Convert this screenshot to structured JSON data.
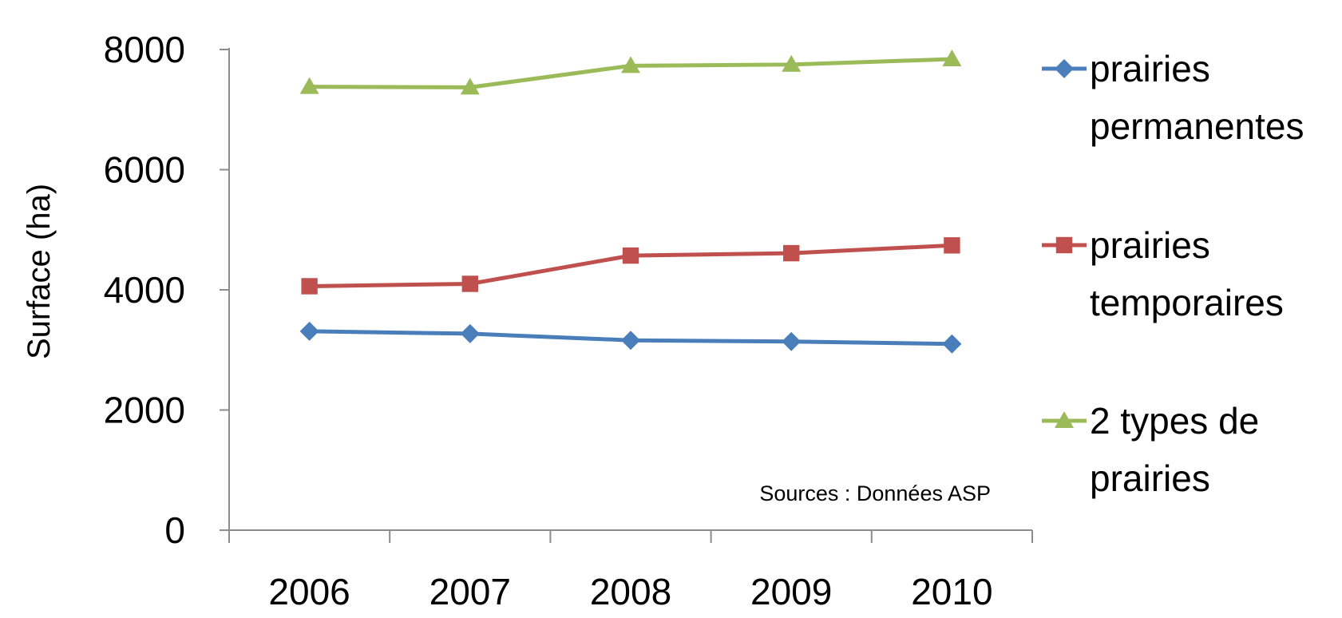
{
  "chart_data": {
    "type": "line",
    "title": "",
    "xlabel": "",
    "ylabel": "Surface (ha)",
    "categories": [
      "2006",
      "2007",
      "2008",
      "2009",
      "2010"
    ],
    "ylim": [
      0,
      8000
    ],
    "yticks": [
      0,
      2000,
      4000,
      6000,
      8000
    ],
    "grid": false,
    "legend_position": "right",
    "annotation": "Sources : Données ASP",
    "series": [
      {
        "name": "prairies permanentes",
        "legend_lines": [
          "prairies",
          "permanentes"
        ],
        "color": "#4a7ebb",
        "marker": "diamond",
        "values": [
          3310,
          3270,
          3160,
          3140,
          3100
        ]
      },
      {
        "name": "prairies temporaires",
        "legend_lines": [
          "prairies",
          "temporaires"
        ],
        "color": "#c0504d",
        "marker": "square",
        "values": [
          4060,
          4100,
          4570,
          4610,
          4740
        ]
      },
      {
        "name": "2 types de prairies",
        "legend_lines": [
          "2 types de",
          "prairies"
        ],
        "color": "#9bbb59",
        "marker": "triangle",
        "values": [
          7380,
          7370,
          7730,
          7750,
          7840
        ]
      }
    ]
  }
}
